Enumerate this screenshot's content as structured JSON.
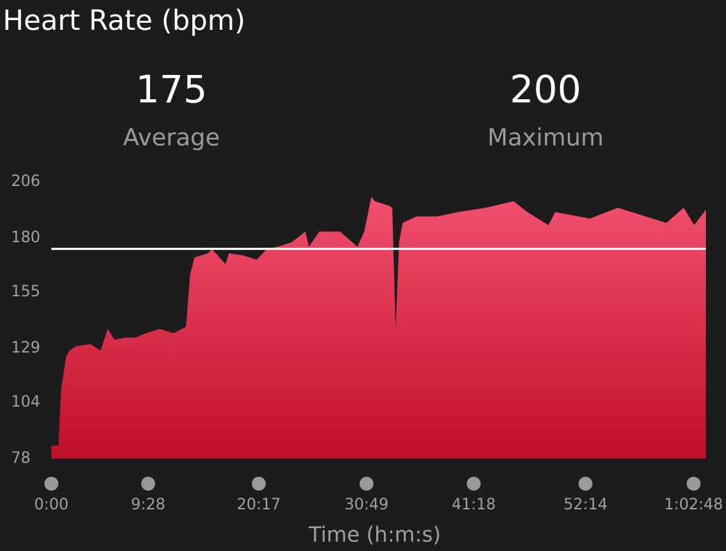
{
  "chart_data": {
    "type": "area",
    "title": "Heart Rate (bpm)",
    "stats": [
      {
        "value": 175,
        "label": "Average"
      },
      {
        "value": 200,
        "label": "Maximum"
      }
    ],
    "x_label": "Time (h:m:s)",
    "x": [
      0,
      41,
      57,
      86,
      106,
      147,
      228,
      289,
      330,
      371,
      432,
      493,
      554,
      635,
      717,
      790,
      814,
      839,
      920,
      941,
      1022,
      1042,
      1124,
      1205,
      1266,
      1327,
      1409,
      1490,
      1511,
      1572,
      1694,
      1796,
      1836,
      1877,
      1898,
      1979,
      2000,
      2020,
      2040,
      2061,
      2142,
      2264,
      2386,
      2549,
      2712,
      2793,
      2916,
      2956,
      3160,
      3323,
      3486,
      3608,
      3710,
      3771,
      3840
    ],
    "values": [
      84,
      84,
      110,
      125,
      128,
      130,
      131,
      128,
      138,
      133,
      134,
      134,
      136,
      138,
      136,
      139,
      163,
      171,
      173,
      175,
      168,
      173,
      172,
      170,
      175,
      176,
      178,
      183,
      176,
      183,
      183,
      176,
      183,
      199,
      197,
      195,
      194,
      138,
      178,
      187,
      190,
      190,
      192,
      194,
      197,
      192,
      186,
      192,
      189,
      194,
      190,
      187,
      194,
      186,
      193
    ],
    "color_top": "#f2506f",
    "color_bottom": "#bf0f28",
    "average_color": "#ffffff",
    "xlim": [
      0,
      3840
    ],
    "xticks": [
      {
        "value": 0,
        "label": "0:00"
      },
      {
        "value": 568,
        "label": "9:28"
      },
      {
        "value": 1217,
        "label": "20:17"
      },
      {
        "value": 1849,
        "label": "30:49"
      },
      {
        "value": 2478,
        "label": "41:18"
      },
      {
        "value": 3134,
        "label": "52:14"
      },
      {
        "value": 3768,
        "label": "1:02:48"
      }
    ],
    "ylim": [
      78,
      206
    ],
    "yticks": [
      78,
      104,
      129,
      155,
      180,
      206
    ]
  }
}
